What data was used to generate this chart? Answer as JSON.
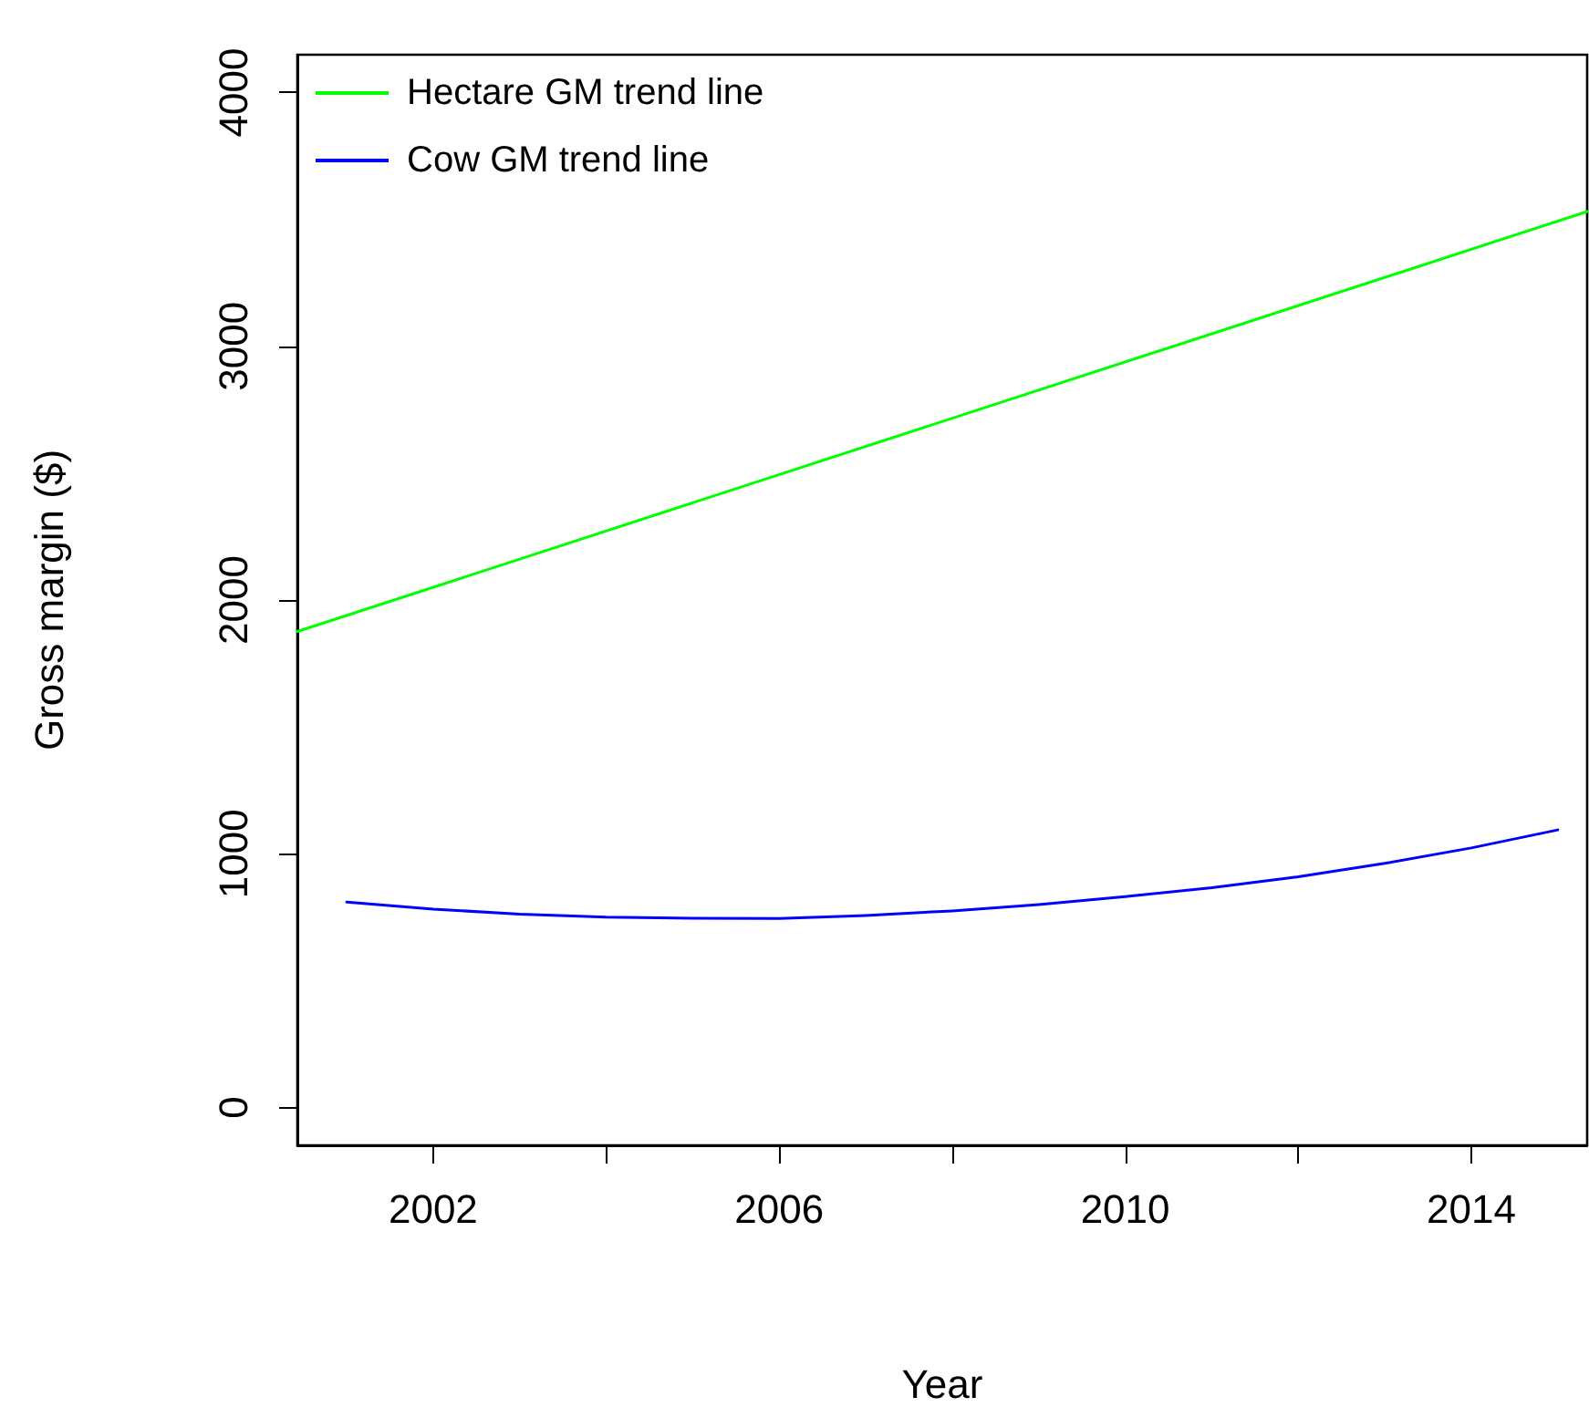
{
  "chart_data": {
    "type": "line",
    "xlabel": "Year",
    "ylabel": "Gross margin ($)",
    "xlim": [
      2000.43,
      2015.34
    ],
    "ylim": [
      -149,
      4149
    ],
    "xticks": [
      2002,
      {
        "value": 2004,
        "label": null
      },
      2006,
      {
        "value": 2008,
        "label": null
      },
      2010,
      {
        "value": 2012,
        "label": null
      },
      2014
    ],
    "yticks": [
      0,
      1000,
      2000,
      3000,
      4000
    ],
    "series": [
      {
        "name": "Hectare GM trend line",
        "color": "#00ff00",
        "x": [
          2000.43,
          2015.34
        ],
        "values": [
          1876,
          3531
        ]
      },
      {
        "name": "Cow GM trend line",
        "color": "#0000ff",
        "x": [
          2001,
          2002,
          2003,
          2004,
          2005,
          2006,
          2007,
          2008,
          2009,
          2010,
          2011,
          2012,
          2013,
          2014,
          2015
        ],
        "values": [
          810,
          782,
          762,
          750,
          746,
          745,
          757,
          775,
          800,
          831,
          866,
          909,
          962,
          1023,
          1094
        ]
      }
    ],
    "legend": "top left",
    "grid": false,
    "marker": "none",
    "line_style": "solid"
  }
}
